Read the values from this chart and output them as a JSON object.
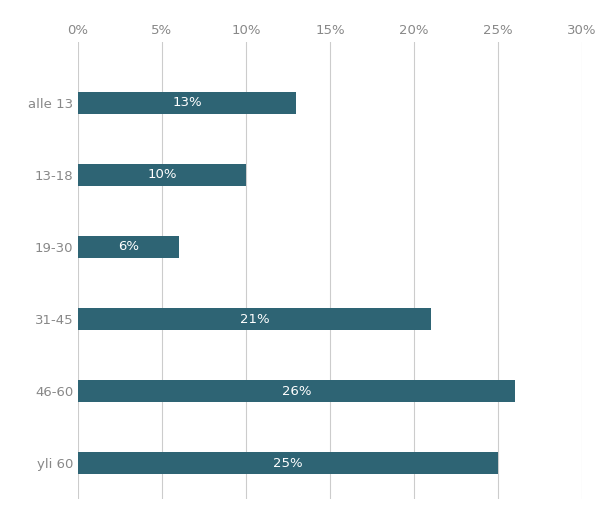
{
  "categories": [
    "alle 13",
    "13-18",
    "19-30",
    "31-45",
    "46-60",
    "yli 60"
  ],
  "values": [
    13,
    10,
    6,
    21,
    26,
    25
  ],
  "bar_color": "#2e6474",
  "label_color": "#ffffff",
  "axis_label_color": "#888888",
  "background_color": "#ffffff",
  "grid_color": "#cccccc",
  "xlim": [
    0,
    30
  ],
  "xticks": [
    0,
    5,
    10,
    15,
    20,
    25,
    30
  ],
  "xtick_labels": [
    "0%",
    "5%",
    "10%",
    "15%",
    "20%",
    "25%",
    "30%"
  ],
  "bar_height": 0.3,
  "label_fontsize": 9.5,
  "tick_fontsize": 9.5,
  "figsize": [
    6.0,
    5.2
  ],
  "dpi": 100
}
